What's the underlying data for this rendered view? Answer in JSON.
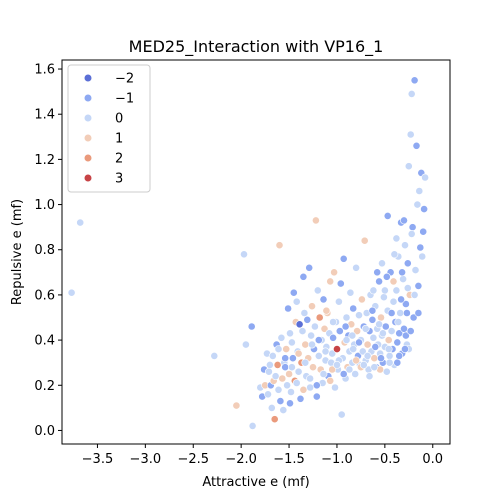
{
  "chart_data": {
    "type": "scatter",
    "title": "MED25_Interaction with VP16_1",
    "xlabel": "Attractive e (mf)",
    "ylabel": "Repulsive e (mf)",
    "xlim": [
      -3.87,
      0.18
    ],
    "ylim": [
      -0.06,
      1.64
    ],
    "xticks": [
      -3.5,
      -3.0,
      -2.5,
      -2.0,
      -1.5,
      -1.0,
      -0.5,
      0.0
    ],
    "xtick_labels": [
      "−3.5",
      "−3.0",
      "−2.5",
      "−2.0",
      "−1.5",
      "−1.0",
      "−0.5",
      "0.0"
    ],
    "yticks": [
      0.0,
      0.2,
      0.4,
      0.6,
      0.8,
      1.0,
      1.2,
      1.4,
      1.6
    ],
    "ytick_labels": [
      "0.0",
      "0.2",
      "0.4",
      "0.6",
      "0.8",
      "1.0",
      "1.2",
      "1.4",
      "1.6"
    ],
    "grid": false,
    "legend_position": "top-left",
    "hue": {
      "levels": [
        -2,
        -1,
        0,
        1,
        2,
        3
      ],
      "labels": [
        "−2",
        "−1",
        "0",
        "1",
        "2",
        "3"
      ],
      "colors": [
        "#5b6fd6",
        "#8ea9f2",
        "#c5d7f7",
        "#f2cdb8",
        "#ea9a7c",
        "#c74346"
      ]
    },
    "points": [
      [
        -3.77,
        0.61,
        0
      ],
      [
        -3.68,
        0.92,
        0
      ],
      [
        -2.28,
        0.33,
        0
      ],
      [
        -2.05,
        0.11,
        1
      ],
      [
        -1.97,
        0.78,
        0
      ],
      [
        -1.95,
        0.38,
        0
      ],
      [
        -1.89,
        0.46,
        -1
      ],
      [
        -1.88,
        0.02,
        0
      ],
      [
        -1.8,
        0.19,
        0
      ],
      [
        -1.78,
        0.15,
        -1
      ],
      [
        -1.76,
        0.27,
        -1
      ],
      [
        -1.75,
        0.2,
        1
      ],
      [
        -1.73,
        0.34,
        0
      ],
      [
        -1.72,
        0.16,
        0
      ],
      [
        -1.71,
        0.26,
        0
      ],
      [
        -1.7,
        0.29,
        0
      ],
      [
        -1.69,
        0.2,
        -1
      ],
      [
        -1.68,
        0.1,
        0
      ],
      [
        -1.67,
        0.33,
        0
      ],
      [
        -1.66,
        0.22,
        1
      ],
      [
        -1.65,
        0.05,
        2
      ],
      [
        -1.64,
        0.24,
        0
      ],
      [
        -1.63,
        0.38,
        -1
      ],
      [
        -1.62,
        0.29,
        2
      ],
      [
        -1.61,
        0.18,
        0
      ],
      [
        -1.6,
        0.82,
        1
      ],
      [
        -1.59,
        0.13,
        -1
      ],
      [
        -1.58,
        0.41,
        0
      ],
      [
        -1.57,
        0.23,
        1
      ],
      [
        -1.56,
        0.09,
        0
      ],
      [
        -1.55,
        0.3,
        0
      ],
      [
        -1.54,
        0.28,
        -1
      ],
      [
        -1.53,
        0.36,
        1
      ],
      [
        -1.52,
        0.2,
        0
      ],
      [
        -1.51,
        0.54,
        -1
      ],
      [
        -1.5,
        0.25,
        1
      ],
      [
        -1.49,
        0.43,
        0
      ],
      [
        -1.48,
        0.17,
        0
      ],
      [
        -1.47,
        0.39,
        0
      ],
      [
        -1.46,
        0.32,
        -1
      ],
      [
        -1.45,
        0.61,
        -1
      ],
      [
        -1.44,
        0.22,
        2
      ],
      [
        -1.43,
        0.48,
        1
      ],
      [
        -1.42,
        0.57,
        0
      ],
      [
        -1.41,
        0.35,
        0
      ],
      [
        -1.4,
        0.26,
        0
      ],
      [
        -1.39,
        0.47,
        -2
      ],
      [
        -1.38,
        0.14,
        -1
      ],
      [
        -1.37,
        0.3,
        2
      ],
      [
        -1.36,
        0.44,
        0
      ],
      [
        -1.35,
        0.68,
        -1
      ],
      [
        -1.34,
        0.52,
        0
      ],
      [
        -1.33,
        0.38,
        1
      ],
      [
        -1.32,
        0.24,
        0
      ],
      [
        -1.31,
        0.49,
        -1
      ],
      [
        -1.3,
        0.32,
        1
      ],
      [
        -1.29,
        0.72,
        -1
      ],
      [
        -1.28,
        0.19,
        0
      ],
      [
        -1.27,
        0.42,
        0
      ],
      [
        -1.26,
        0.55,
        1
      ],
      [
        -1.25,
        0.28,
        1
      ],
      [
        -1.24,
        0.36,
        -1
      ],
      [
        -1.23,
        0.46,
        0
      ],
      [
        -1.22,
        0.93,
        1
      ],
      [
        -1.21,
        0.15,
        -1
      ],
      [
        -1.2,
        0.62,
        0
      ],
      [
        -1.19,
        0.33,
        0
      ],
      [
        -1.18,
        0.5,
        2
      ],
      [
        -1.17,
        0.27,
        1
      ],
      [
        -1.16,
        0.4,
        0
      ],
      [
        -1.15,
        0.21,
        0
      ],
      [
        -1.14,
        0.58,
        -1
      ],
      [
        -1.13,
        0.45,
        1
      ],
      [
        -1.12,
        0.31,
        0
      ],
      [
        -1.11,
        0.37,
        0
      ],
      [
        -1.1,
        0.52,
        1
      ],
      [
        -1.09,
        0.24,
        -1
      ],
      [
        -1.08,
        0.43,
        0
      ],
      [
        -1.07,
        0.66,
        1
      ],
      [
        -1.06,
        0.3,
        0
      ],
      [
        -1.05,
        0.34,
        0
      ],
      [
        -1.04,
        0.41,
        -1
      ],
      [
        -1.03,
        0.7,
        1
      ],
      [
        -1.02,
        0.19,
        0
      ],
      [
        -1.01,
        0.48,
        0
      ],
      [
        -1.0,
        0.36,
        3
      ],
      [
        -0.99,
        0.27,
        0
      ],
      [
        -0.98,
        0.57,
        0
      ],
      [
        -0.97,
        0.44,
        1
      ],
      [
        -0.96,
        0.65,
        -1
      ],
      [
        -0.95,
        0.07,
        0
      ],
      [
        -0.94,
        0.32,
        0
      ],
      [
        -0.93,
        0.76,
        -1
      ],
      [
        -0.92,
        0.39,
        1
      ],
      [
        -0.91,
        0.23,
        0
      ],
      [
        -0.9,
        0.5,
        0
      ],
      [
        -0.89,
        0.28,
        1
      ],
      [
        -0.88,
        0.42,
        -1
      ],
      [
        -0.87,
        0.35,
        0
      ],
      [
        -0.86,
        0.61,
        0
      ],
      [
        -0.85,
        0.47,
        1
      ],
      [
        -0.84,
        0.3,
        0
      ],
      [
        -0.83,
        0.54,
        -1
      ],
      [
        -0.82,
        0.38,
        0
      ],
      [
        -0.81,
        0.25,
        0
      ],
      [
        -0.8,
        0.72,
        0
      ],
      [
        -0.79,
        0.44,
        1
      ],
      [
        -0.78,
        0.33,
        -1
      ],
      [
        -0.77,
        0.51,
        0
      ],
      [
        -0.76,
        0.29,
        0
      ],
      [
        -0.75,
        0.4,
        0
      ],
      [
        -0.74,
        0.58,
        1
      ],
      [
        -0.73,
        0.35,
        0
      ],
      [
        -0.72,
        0.46,
        -1
      ],
      [
        -0.71,
        0.84,
        1
      ],
      [
        -0.7,
        0.31,
        0
      ],
      [
        -0.69,
        0.52,
        0
      ],
      [
        -0.68,
        0.38,
        1
      ],
      [
        -0.67,
        0.27,
        0
      ],
      [
        -0.66,
        0.44,
        -1
      ],
      [
        -0.65,
        0.6,
        0
      ],
      [
        -0.64,
        0.35,
        0
      ],
      [
        -0.63,
        0.49,
        -1
      ],
      [
        -0.62,
        0.41,
        0
      ],
      [
        -0.61,
        0.32,
        1
      ],
      [
        -0.6,
        0.55,
        0
      ],
      [
        -0.59,
        0.28,
        -1
      ],
      [
        -0.58,
        0.45,
        0
      ],
      [
        -0.57,
        0.38,
        0
      ],
      [
        -0.56,
        0.66,
        -1
      ],
      [
        -0.55,
        0.34,
        0
      ],
      [
        -0.54,
        0.5,
        1
      ],
      [
        -0.53,
        0.42,
        0
      ],
      [
        -0.52,
        0.3,
        -1
      ],
      [
        -0.51,
        0.59,
        0
      ],
      [
        -0.5,
        0.37,
        0
      ],
      [
        -0.49,
        0.46,
        -1
      ],
      [
        -0.48,
        0.26,
        0
      ],
      [
        -0.47,
        0.53,
        0
      ],
      [
        -0.46,
        0.4,
        1
      ],
      [
        -0.45,
        0.33,
        0
      ],
      [
        -0.44,
        0.7,
        -1
      ],
      [
        -0.43,
        0.44,
        0
      ],
      [
        -0.42,
        0.36,
        -1
      ],
      [
        -0.41,
        0.57,
        0
      ],
      [
        -0.4,
        0.29,
        0
      ],
      [
        -0.39,
        0.48,
        -1
      ],
      [
        -0.38,
        0.62,
        0
      ],
      [
        -0.37,
        0.39,
        -1
      ],
      [
        -0.36,
        0.77,
        0
      ],
      [
        -0.35,
        0.43,
        -1
      ],
      [
        -0.34,
        0.52,
        0
      ],
      [
        -0.33,
        0.92,
        -1
      ],
      [
        -0.32,
        0.34,
        -1
      ],
      [
        -0.31,
        0.67,
        0
      ],
      [
        -0.3,
        0.45,
        -1
      ],
      [
        -0.29,
        0.82,
        0
      ],
      [
        -0.28,
        0.56,
        -1
      ],
      [
        -0.27,
        0.38,
        0
      ],
      [
        -0.26,
        0.74,
        -1
      ],
      [
        -0.25,
        1.17,
        0
      ],
      [
        -0.24,
        0.6,
        1
      ],
      [
        -0.23,
        1.31,
        0
      ],
      [
        -0.22,
        1.49,
        0
      ],
      [
        -0.21,
        0.9,
        -1
      ],
      [
        -0.2,
        0.5,
        -1
      ],
      [
        -0.19,
        1.55,
        -1
      ],
      [
        -0.18,
        0.71,
        0
      ],
      [
        -0.17,
        1.26,
        -1
      ],
      [
        -0.16,
        1.0,
        0
      ],
      [
        -0.15,
        0.64,
        -1
      ],
      [
        -0.14,
        1.06,
        0
      ],
      [
        -0.13,
        0.81,
        -1
      ],
      [
        -0.12,
        1.14,
        -1
      ],
      [
        -0.11,
        0.77,
        0
      ],
      [
        -0.1,
        0.88,
        -1
      ],
      [
        -0.09,
        0.98,
        -1
      ],
      [
        -0.08,
        1.12,
        0
      ],
      [
        -0.47,
        0.95,
        -1
      ],
      [
        -0.38,
        0.85,
        0
      ],
      [
        -0.3,
        0.93,
        -1
      ],
      [
        -0.22,
        0.87,
        0
      ],
      [
        -0.26,
        0.63,
        0
      ],
      [
        -0.33,
        0.58,
        -1
      ],
      [
        -0.41,
        0.66,
        1
      ],
      [
        -0.5,
        0.62,
        0
      ],
      [
        -0.56,
        0.47,
        0
      ],
      [
        -0.63,
        0.53,
        -1
      ],
      [
        -0.7,
        0.45,
        0
      ],
      [
        -0.77,
        0.39,
        -1
      ],
      [
        -0.84,
        0.42,
        0
      ],
      [
        -0.91,
        0.46,
        -1
      ],
      [
        -0.98,
        0.31,
        0
      ],
      [
        -1.05,
        0.27,
        1
      ],
      [
        -1.12,
        0.35,
        0
      ],
      [
        -1.19,
        0.4,
        -1
      ],
      [
        -1.26,
        0.38,
        0
      ],
      [
        -1.33,
        0.3,
        0
      ],
      [
        -1.4,
        0.34,
        1
      ],
      [
        -1.47,
        0.28,
        0
      ],
      [
        -1.54,
        0.32,
        -1
      ],
      [
        -1.61,
        0.36,
        0
      ],
      [
        -0.55,
        0.27,
        1
      ],
      [
        -0.45,
        0.3,
        0
      ],
      [
        -0.35,
        0.33,
        -1
      ],
      [
        -0.25,
        0.36,
        0
      ],
      [
        -0.28,
        0.42,
        -1
      ],
      [
        -0.36,
        0.48,
        0
      ],
      [
        -0.43,
        0.52,
        -1
      ],
      [
        -0.52,
        0.43,
        0
      ],
      [
        -0.6,
        0.37,
        -1
      ],
      [
        -0.68,
        0.33,
        0
      ],
      [
        -0.75,
        0.28,
        1
      ],
      [
        -0.83,
        0.36,
        0
      ],
      [
        -0.9,
        0.4,
        0
      ],
      [
        -0.97,
        0.44,
        -1
      ],
      [
        -1.04,
        0.48,
        0
      ],
      [
        -1.11,
        0.53,
        1
      ],
      [
        -0.62,
        0.62,
        0
      ],
      [
        -0.58,
        0.7,
        -1
      ],
      [
        -0.53,
        0.74,
        0
      ],
      [
        -0.48,
        0.68,
        -1
      ],
      [
        -0.4,
        0.78,
        0
      ],
      [
        -0.32,
        0.7,
        -1
      ],
      [
        -0.27,
        0.52,
        -1
      ],
      [
        -0.23,
        0.44,
        -1
      ],
      [
        -0.19,
        0.6,
        0
      ],
      [
        -0.15,
        0.52,
        -1
      ],
      [
        -0.29,
        0.36,
        -1
      ],
      [
        -0.37,
        0.3,
        -1
      ],
      [
        -0.46,
        0.36,
        0
      ],
      [
        -0.54,
        0.32,
        -1
      ],
      [
        -0.61,
        0.28,
        0
      ],
      [
        -0.66,
        0.24,
        0
      ],
      [
        -0.72,
        0.29,
        0
      ],
      [
        -0.8,
        0.31,
        1
      ],
      [
        -0.87,
        0.27,
        0
      ],
      [
        -0.93,
        0.25,
        -1
      ],
      [
        -1.0,
        0.29,
        0
      ],
      [
        -1.07,
        0.22,
        1
      ],
      [
        -1.14,
        0.25,
        0
      ],
      [
        -1.21,
        0.2,
        -1
      ],
      [
        -1.28,
        0.23,
        0
      ],
      [
        -1.35,
        0.18,
        1
      ],
      [
        -1.42,
        0.21,
        0
      ],
      [
        -1.49,
        0.12,
        -1
      ]
    ]
  }
}
